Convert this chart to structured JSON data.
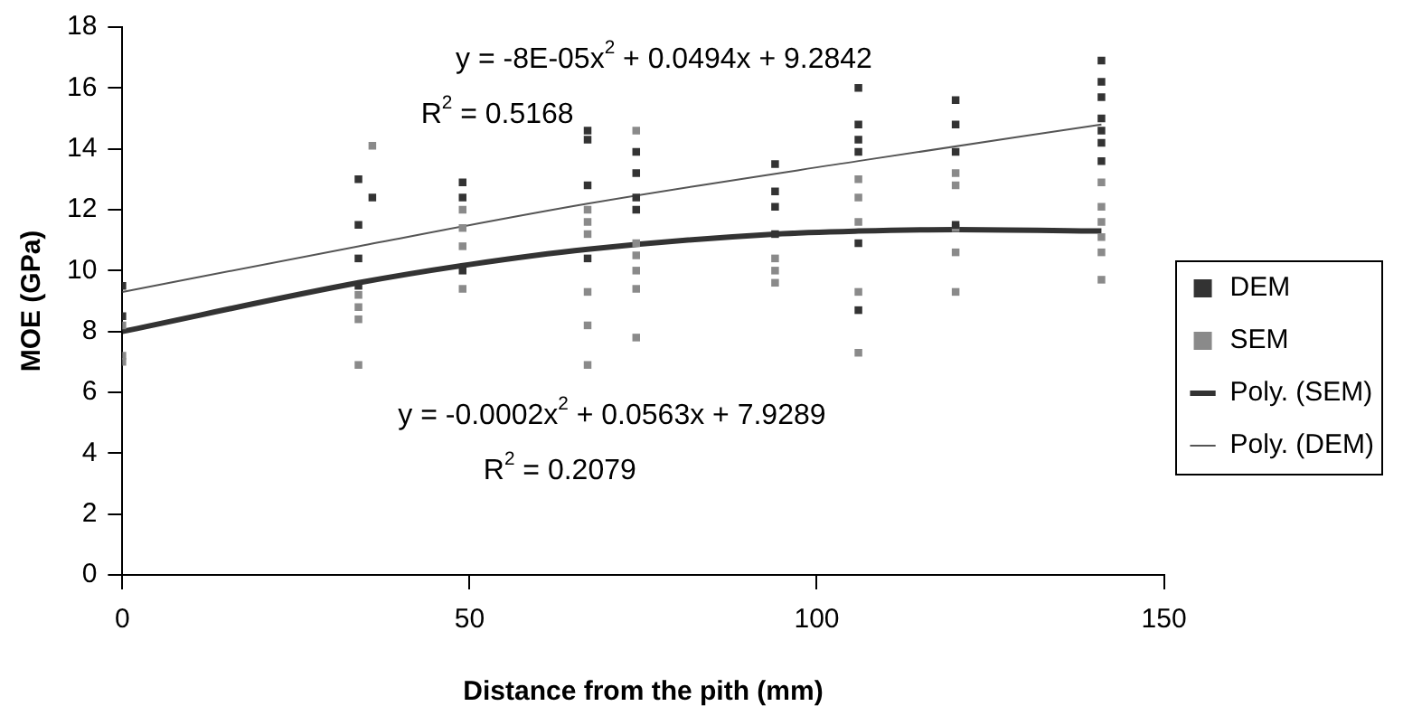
{
  "chart_data": {
    "type": "scatter",
    "xlabel": "Distance from the pith (mm)",
    "ylabel": "MOE (GPa)",
    "xlim": [
      0,
      150
    ],
    "xticks": [
      0,
      50,
      100,
      150
    ],
    "ylim": [
      0,
      18
    ],
    "yticks": [
      0,
      2,
      4,
      6,
      8,
      10,
      12,
      14,
      16,
      18
    ],
    "grid": false,
    "legend": "right",
    "marker": "square",
    "series": [
      {
        "name": "DEM",
        "type": "scatter",
        "color": "#333333",
        "x": [
          0,
          0,
          34,
          34,
          34,
          34,
          36,
          49,
          49,
          49,
          67,
          67,
          67,
          67,
          74,
          74,
          74,
          74,
          94,
          94,
          94,
          94,
          106,
          106,
          106,
          106,
          106,
          106,
          120,
          120,
          120,
          120,
          141,
          141,
          141,
          141,
          141,
          141,
          141
        ],
        "values": [
          9.5,
          8.5,
          13.0,
          11.5,
          10.4,
          9.5,
          12.4,
          12.9,
          12.4,
          10.0,
          14.6,
          14.3,
          12.8,
          10.4,
          13.9,
          13.2,
          12.4,
          12.0,
          13.5,
          12.6,
          12.1,
          11.2,
          16.0,
          14.8,
          14.3,
          13.9,
          10.9,
          8.7,
          15.6,
          14.8,
          13.9,
          11.5,
          16.9,
          16.2,
          15.7,
          15.0,
          14.6,
          14.2,
          13.6
        ]
      },
      {
        "name": "SEM",
        "type": "scatter",
        "color": "#8a8a8a",
        "x": [
          0,
          0,
          0,
          34,
          34,
          34,
          34,
          36,
          49,
          49,
          49,
          49,
          67,
          67,
          67,
          67,
          67,
          67,
          74,
          74,
          74,
          74,
          74,
          74,
          94,
          94,
          94,
          106,
          106,
          106,
          106,
          106,
          120,
          120,
          120,
          120,
          120,
          141,
          141,
          141,
          141,
          141,
          141
        ],
        "values": [
          8.2,
          7.2,
          7.0,
          9.2,
          8.8,
          8.4,
          6.9,
          14.1,
          12.0,
          11.4,
          10.8,
          9.4,
          12.0,
          11.6,
          11.2,
          9.3,
          8.2,
          6.9,
          14.6,
          10.9,
          10.5,
          10.0,
          9.4,
          7.8,
          10.4,
          10.0,
          9.6,
          13.0,
          12.4,
          11.6,
          9.3,
          7.3,
          13.2,
          12.8,
          11.4,
          10.6,
          9.3,
          12.9,
          12.1,
          11.6,
          11.1,
          10.6,
          9.7
        ]
      },
      {
        "name": "Poly. (SEM)",
        "type": "line",
        "marker": "none",
        "color": "#333333",
        "x": [
          0,
          34,
          50,
          67,
          94,
          106,
          120,
          141
        ],
        "values": [
          8.0,
          9.6,
          10.2,
          10.7,
          11.2,
          11.3,
          11.35,
          11.3
        ]
      },
      {
        "name": "Poly. (DEM)",
        "type": "line",
        "marker": "none",
        "color": "#555555",
        "x": [
          0,
          34,
          67,
          106,
          141
        ],
        "values": [
          9.3,
          10.8,
          12.2,
          13.6,
          14.8
        ]
      }
    ],
    "annotations": [
      "y = -8E-05x$^{2}$ + 0.0494x + 9.2842",
      "R$^{2}$ = 0.5168",
      "y = -0.0002x$^{2}$ + 0.0563x + 7.9289",
      "R$^{2}$ = 0.2079"
    ]
  }
}
